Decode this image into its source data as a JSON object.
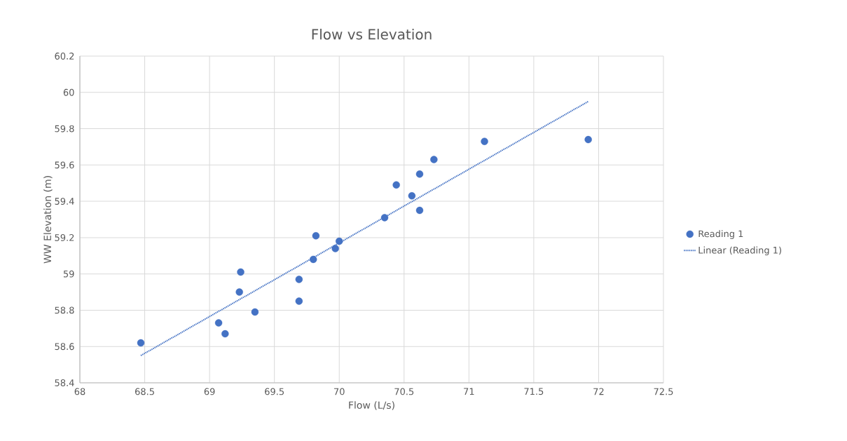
{
  "chart_data": {
    "type": "scatter",
    "title": "Flow vs Elevation",
    "xlabel": "Flow (L/s)",
    "ylabel": "WW Elevation (m)",
    "xlim": [
      68,
      72.5
    ],
    "xticks": [
      68,
      68.5,
      69,
      69.5,
      70,
      70.5,
      71,
      71.5,
      72,
      72.5
    ],
    "ylim": [
      58.4,
      60.2
    ],
    "yticks": [
      58.4,
      58.6,
      58.8,
      59,
      59.2,
      59.4,
      59.6,
      59.8,
      60,
      60.2
    ],
    "grid": true,
    "legend": "right",
    "series": [
      {
        "name": "Reading 1",
        "color": "#4472c4",
        "x": [
          68.47,
          69.07,
          69.12,
          69.24,
          69.23,
          69.35,
          69.69,
          69.69,
          69.82,
          69.8,
          69.97,
          70.0,
          70.35,
          70.44,
          70.56,
          70.62,
          70.62,
          70.73,
          71.12,
          71.92
        ],
        "values": [
          58.62,
          58.73,
          58.67,
          59.01,
          58.9,
          58.79,
          58.97,
          58.85,
          59.21,
          59.08,
          59.14,
          59.18,
          59.31,
          59.49,
          59.43,
          59.55,
          59.35,
          59.63,
          59.73,
          59.74
        ]
      },
      {
        "name": "Linear (Reading 1)",
        "type": "line",
        "line_style": "dotted",
        "color": "#4472c4",
        "x": [
          68.47,
          71.92
        ],
        "values": [
          58.55,
          59.95
        ]
      }
    ]
  }
}
